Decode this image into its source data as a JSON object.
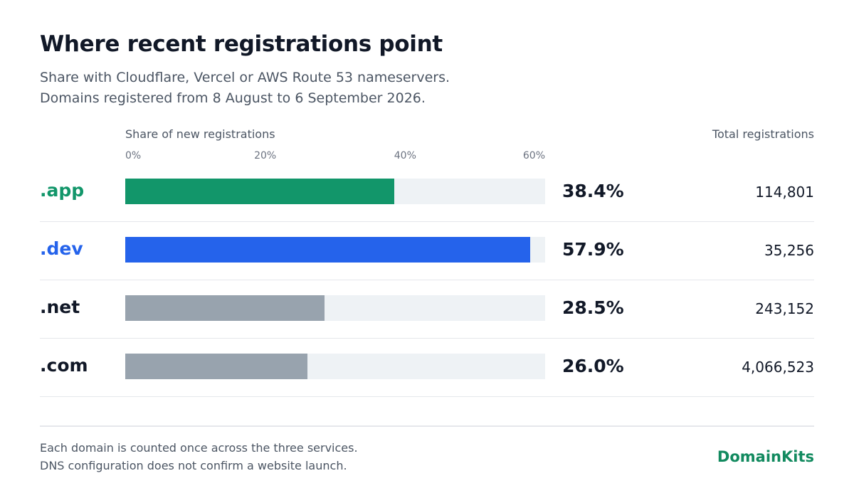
{
  "header": {
    "title": "Where recent registrations point",
    "subtitle_line1": "Share with Cloudflare, Vercel or AWS Route 53 nameservers.",
    "subtitle_line2": "Domains registered from 8 August to 6 September 2026."
  },
  "chart_data": {
    "type": "bar",
    "orientation": "horizontal",
    "xlabel": "Share of new registrations",
    "xlim": [
      0,
      60
    ],
    "x_ticks": [
      "0%",
      "20%",
      "40%",
      "60%"
    ],
    "totals_header": "Total registrations",
    "categories": [
      ".app",
      ".dev",
      ".net",
      ".com"
    ],
    "values": [
      38.4,
      57.9,
      28.5,
      26.0
    ],
    "value_labels": [
      "38.4%",
      "57.9%",
      "28.5%",
      "26.0%"
    ],
    "totals": [
      "114,801",
      "35,256",
      "243,152",
      "4,066,523"
    ],
    "colors": [
      "#12966a",
      "#2563eb",
      "#98a3ae",
      "#98a3ae"
    ],
    "label_colors": [
      "#12966a",
      "#2563eb",
      "#111827",
      "#111827"
    ]
  },
  "footer": {
    "note_line1": "Each domain is counted once across the three services.",
    "note_line2": "DNS configuration does not confirm a website launch.",
    "brand": "DomainKits"
  }
}
